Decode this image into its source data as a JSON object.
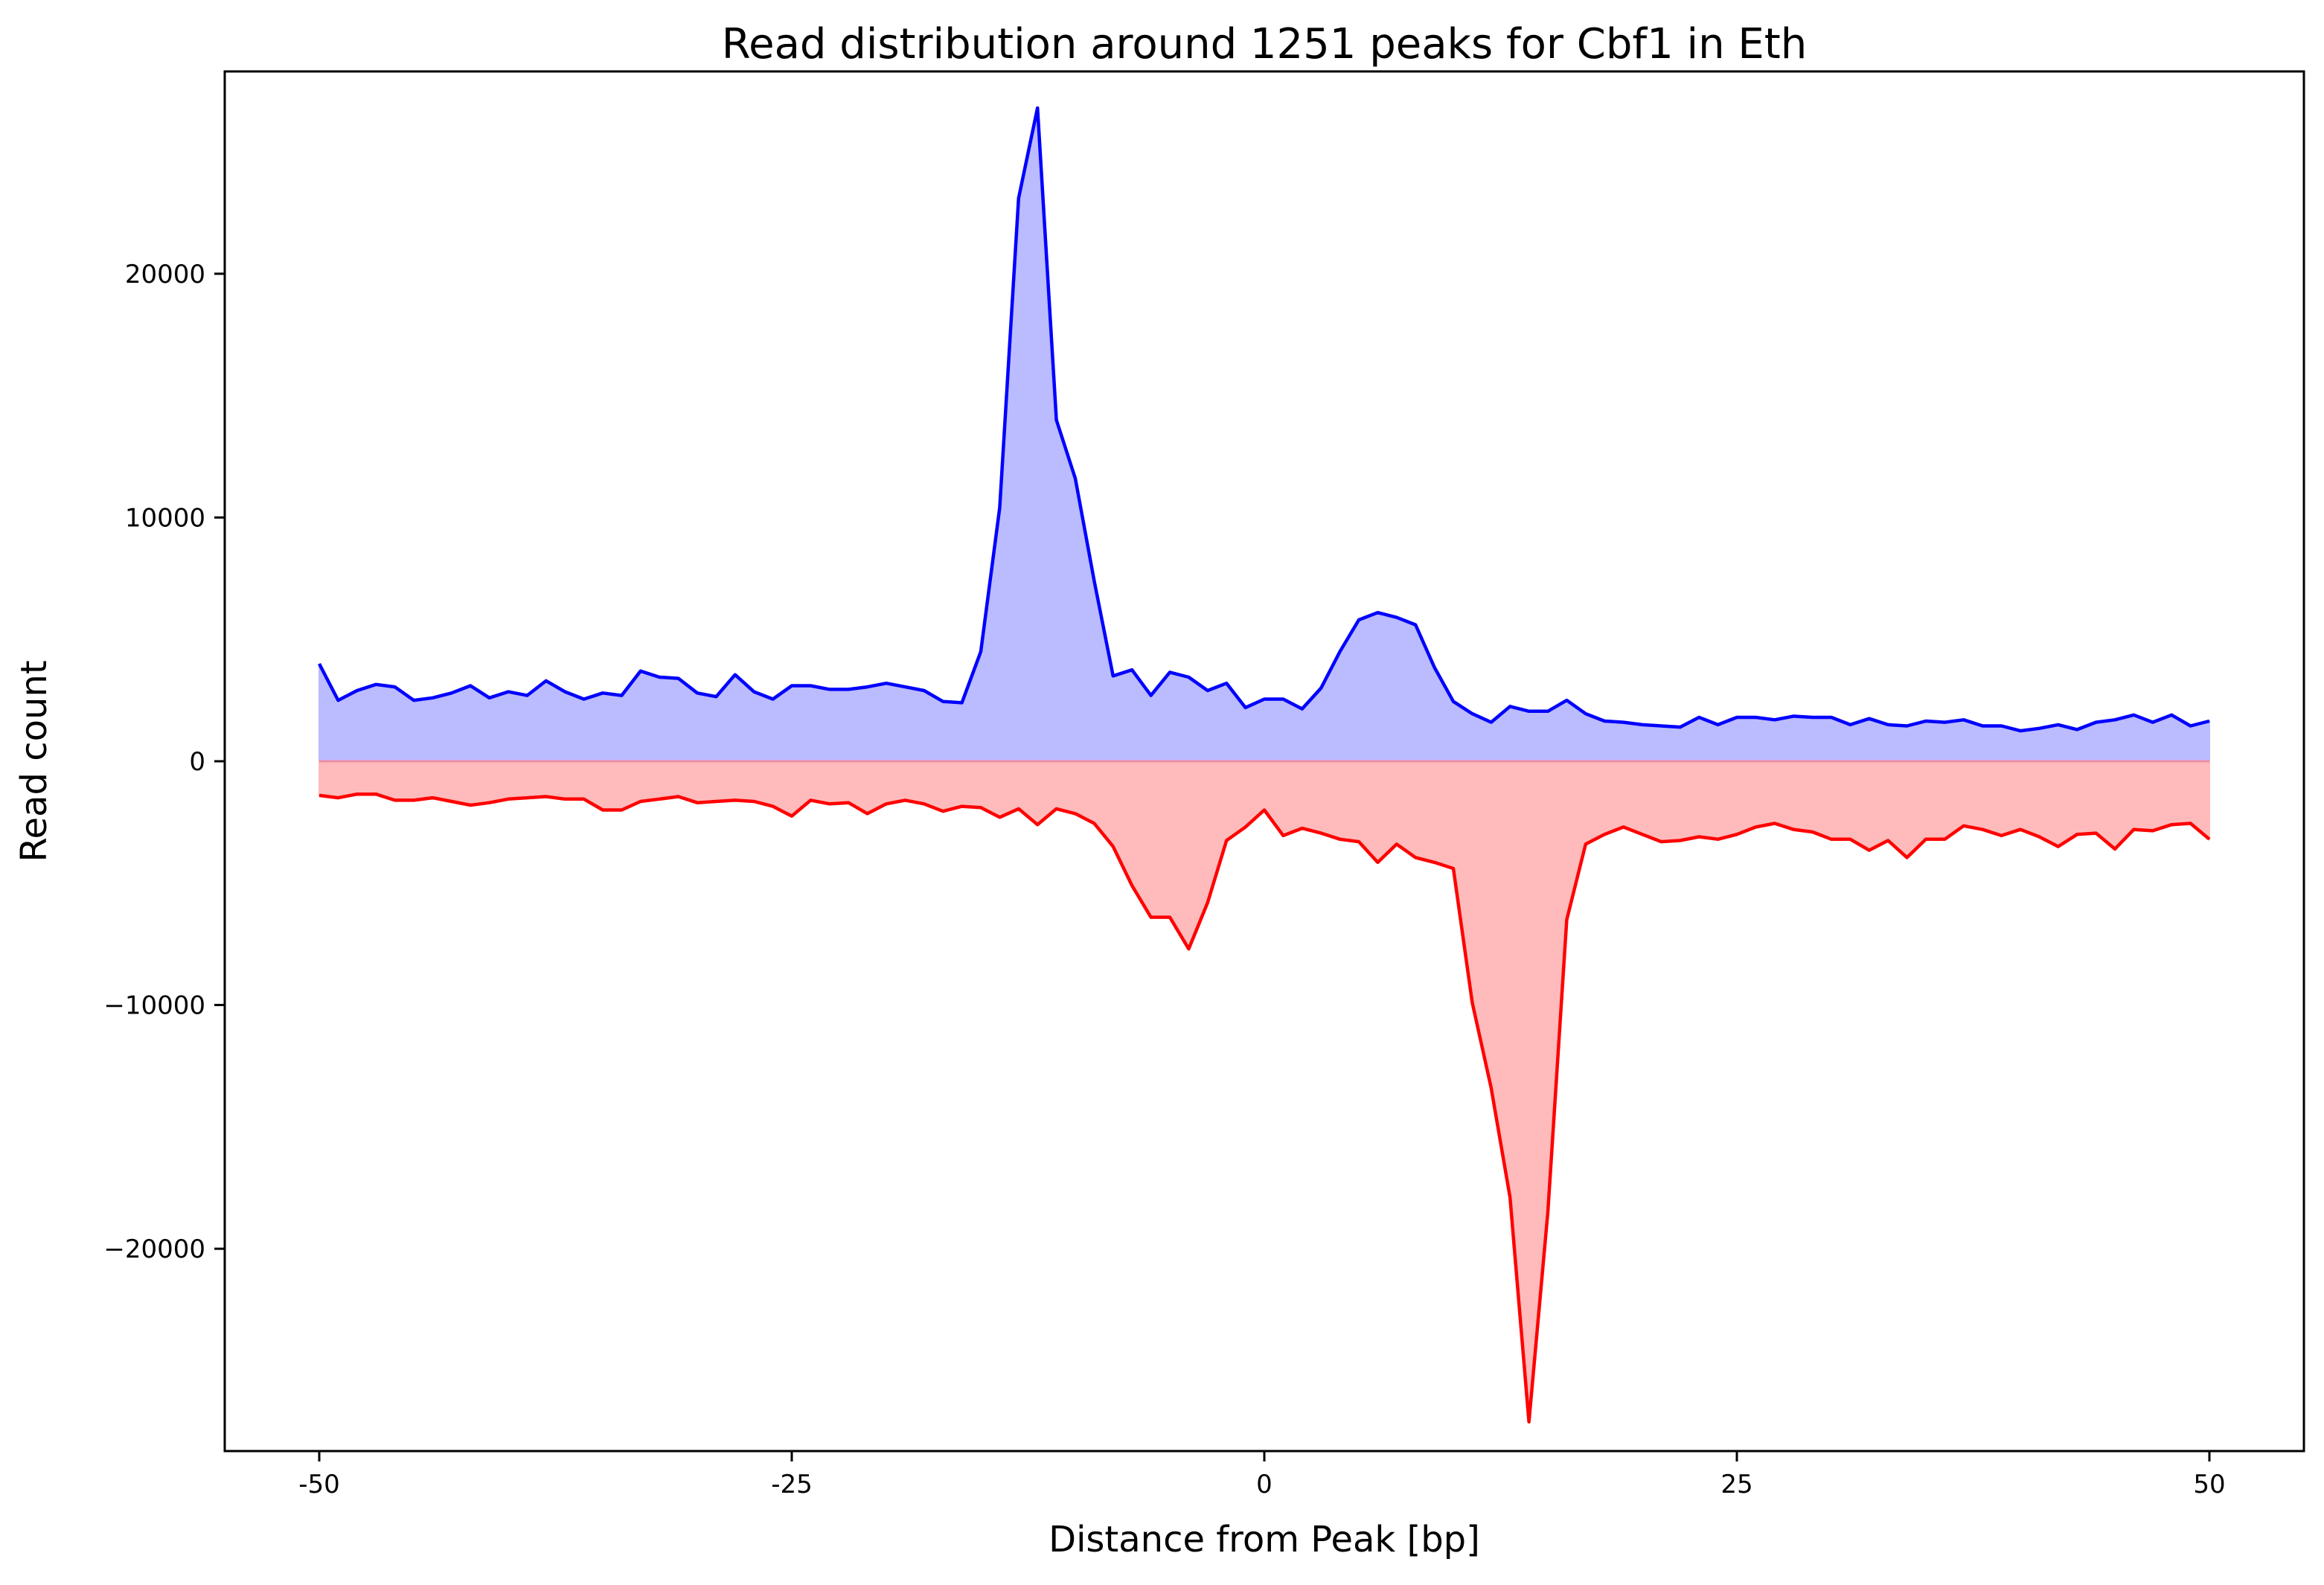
{
  "chart_data": {
    "type": "area",
    "title": "Read distribution around 1251 peaks for Cbf1 in Eth",
    "xlabel": "Distance from Peak [bp]",
    "ylabel": "Read count",
    "xlim": [
      -55,
      55
    ],
    "ylim": [
      -28300,
      28300
    ],
    "x_ticks": [
      {
        "value": -50,
        "label": "-50"
      },
      {
        "value": -25,
        "label": "-25"
      },
      {
        "value": 0,
        "label": "0"
      },
      {
        "value": 25,
        "label": "25"
      },
      {
        "value": 50,
        "label": "50"
      }
    ],
    "y_ticks": [
      {
        "value": 20000,
        "label": "20000"
      },
      {
        "value": 10000,
        "label": "10000"
      },
      {
        "value": 0,
        "label": "0"
      },
      {
        "value": -10000,
        "label": "−10000"
      },
      {
        "value": -20000,
        "label": "−20000"
      }
    ],
    "grid": false,
    "legend": "none",
    "x": [
      -50,
      -49,
      -48,
      -47,
      -46,
      -45,
      -44,
      -43,
      -42,
      -41,
      -40,
      -39,
      -38,
      -37,
      -36,
      -35,
      -34,
      -33,
      -32,
      -31,
      -30,
      -29,
      -28,
      -27,
      -26,
      -25,
      -24,
      -23,
      -22,
      -21,
      -20,
      -19,
      -18,
      -17,
      -16,
      -15,
      -14,
      -13,
      -12,
      -11,
      -10,
      -9,
      -8,
      -7,
      -6,
      -5,
      -4,
      -3,
      -2,
      -1,
      0,
      1,
      2,
      3,
      4,
      5,
      6,
      7,
      8,
      9,
      10,
      11,
      12,
      13,
      14,
      15,
      16,
      17,
      18,
      19,
      20,
      21,
      22,
      23,
      24,
      25,
      26,
      27,
      28,
      29,
      30,
      31,
      32,
      33,
      34,
      35,
      36,
      37,
      38,
      39,
      40,
      41,
      42,
      43,
      44,
      45,
      46,
      47,
      48,
      49,
      50
    ],
    "series": [
      {
        "color": "#0000ff",
        "fill": "#bbbbff",
        "values": [
          4000,
          2500,
          2900,
          3150,
          3050,
          2500,
          2600,
          2800,
          3100,
          2600,
          2850,
          2700,
          3300,
          2850,
          2550,
          2800,
          2700,
          3700,
          3450,
          3400,
          2800,
          2650,
          3550,
          2850,
          2550,
          3100,
          3100,
          2950,
          2950,
          3050,
          3200,
          3050,
          2900,
          2450,
          2400,
          4500,
          10400,
          23100,
          26800,
          14000,
          11600,
          7400,
          3500,
          3750,
          2700,
          3650,
          3450,
          2900,
          3200,
          2200,
          2550,
          2550,
          2150,
          3000,
          4500,
          5800,
          6100,
          5900,
          5600,
          3850,
          2450,
          1950,
          1600,
          2250,
          2050,
          2050,
          2500,
          1950,
          1650,
          1600,
          1500,
          1450,
          1400,
          1800,
          1500,
          1800,
          1800,
          1700,
          1850,
          1800,
          1800,
          1500,
          1750,
          1500,
          1450,
          1650,
          1600,
          1700,
          1450,
          1450,
          1250,
          1350,
          1500,
          1300,
          1600,
          1700,
          1900,
          1600,
          1900,
          1450,
          1650
        ]
      },
      {
        "color": "#ff0000",
        "fill": "#ffbbbb",
        "values": [
          -1400,
          -1500,
          -1350,
          -1350,
          -1600,
          -1600,
          -1500,
          -1650,
          -1800,
          -1700,
          -1550,
          -1500,
          -1450,
          -1550,
          -1550,
          -2000,
          -2000,
          -1650,
          -1550,
          -1450,
          -1700,
          -1650,
          -1600,
          -1650,
          -1850,
          -2250,
          -1600,
          -1750,
          -1700,
          -2150,
          -1750,
          -1600,
          -1750,
          -2050,
          -1850,
          -1900,
          -2300,
          -1950,
          -2600,
          -1950,
          -2150,
          -2550,
          -3500,
          -5100,
          -6400,
          -6400,
          -7700,
          -5800,
          -3250,
          -2700,
          -2000,
          -3050,
          -2750,
          -2950,
          -3200,
          -3300,
          -4150,
          -3400,
          -3950,
          -4150,
          -4400,
          -9900,
          -13400,
          -17900,
          -27100,
          -18500,
          -6500,
          -3400,
          -3000,
          -2700,
          -3000,
          -3300,
          -3250,
          -3100,
          -3200,
          -3000,
          -2700,
          -2550,
          -2800,
          -2900,
          -3200,
          -3200,
          -3650,
          -3250,
          -3950,
          -3200,
          -3200,
          -2650,
          -2800,
          -3050,
          -2800,
          -3100,
          -3500,
          -3000,
          -2950,
          -3600,
          -2800,
          -2850,
          -2600,
          -2550,
          -3200
        ]
      }
    ]
  }
}
